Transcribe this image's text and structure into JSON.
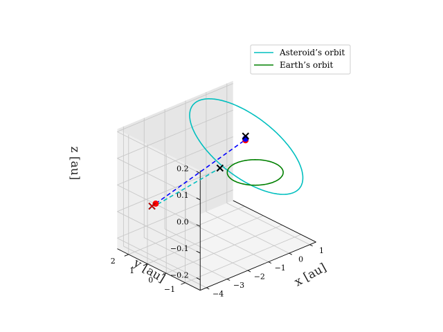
{
  "chart_data": {
    "type": "line3d",
    "axes": {
      "x": {
        "label": "x [au]",
        "ticks": [
          -4,
          -3,
          -2,
          -1,
          0,
          1
        ],
        "tick_labels": [
          "−4",
          "−3",
          "−2",
          "−1",
          "0",
          "1"
        ],
        "range": [
          -4.3,
          1.3
        ]
      },
      "y": {
        "label": "y [au]",
        "ticks": [
          -1,
          0,
          1,
          2
        ],
        "tick_labels": [
          "−1",
          "0",
          "1",
          "2"
        ],
        "range": [
          -1.8,
          2.6
        ]
      },
      "z": {
        "label": "z [au]",
        "ticks": [
          -0.2,
          -0.1,
          0.0,
          0.1,
          0.2
        ],
        "tick_labels": [
          "−0.2",
          "−0.1",
          "0.0",
          "0.1",
          "0.2"
        ],
        "range": [
          -0.24,
          0.21
        ]
      }
    },
    "grid": true,
    "legend": {
      "placement": "upper right",
      "entries": [
        {
          "label": "Asteroid’s orbit",
          "color": "#00bfbf"
        },
        {
          "label": "Earth’s orbit",
          "color": "#008000"
        }
      ]
    },
    "series": [
      {
        "name": "Asteroid’s orbit",
        "kind": "ellipse-orbit",
        "color": "#00bfbf",
        "semi_major_axis": 2.5,
        "eccentricity": 0.6,
        "inclination_deg": 3.0,
        "ascending_node_deg": 40,
        "perihelion_arg_deg": 200
      },
      {
        "name": "Earth’s orbit",
        "kind": "circle-orbit",
        "color": "#008000",
        "radius": 1.0
      },
      {
        "kind": "segment",
        "style": "dashed",
        "color": "#0000ff",
        "from": [
          -2.9,
          2.1,
          -0.098
        ],
        "to": [
          0.35,
          0.9,
          0.08
        ]
      },
      {
        "kind": "segment",
        "style": "dashed",
        "color": "#00bfbf",
        "from": [
          -2.85,
          2.05,
          -0.1
        ],
        "to": [
          -0.7,
          1.1,
          0.0
        ]
      },
      {
        "kind": "markers",
        "marker": "o",
        "color": "#ff0000",
        "points": [
          [
            -2.9,
            2.1,
            -0.098
          ],
          [
            0.35,
            0.9,
            0.078
          ]
        ]
      },
      {
        "kind": "markers",
        "marker": "o",
        "color": "#0000ff",
        "points": [
          [
            0.33,
            0.88,
            0.085
          ]
        ]
      },
      {
        "kind": "markers",
        "marker": "x",
        "color": "#000000",
        "points": [
          [
            -2.85,
            2.35,
            -0.118
          ],
          [
            -0.7,
            1.1,
            0.0
          ],
          [
            0.4,
            0.95,
            0.09
          ]
        ]
      },
      {
        "kind": "markers",
        "marker": "x",
        "color": "#ff0000",
        "points": [
          [
            -2.85,
            2.35,
            -0.118
          ]
        ]
      }
    ]
  }
}
